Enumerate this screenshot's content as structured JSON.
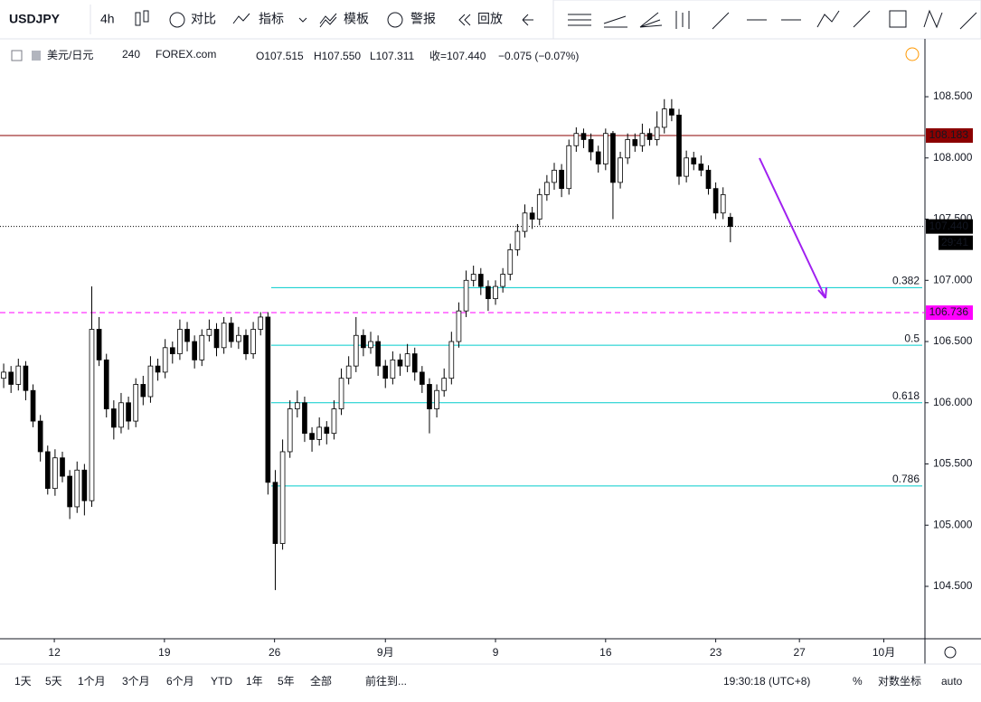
{
  "toolbar": {
    "symbol": "USDJPY",
    "interval": "4h",
    "buttons": [
      "对比",
      "指标",
      "模板",
      "警报",
      "回放"
    ]
  },
  "legend": {
    "name": "美元/日元",
    "resolution": "240",
    "source": "FOREX.com",
    "open": "O107.515",
    "high": "H107.550",
    "low": "L107.311",
    "close": "收=107.440",
    "change": "−0.075 (−0.07%)"
  },
  "chart_data": {
    "type": "candlestick",
    "ylim": [
      104.072,
      108.958
    ],
    "xlim": [
      -0.5,
      125.5
    ],
    "yticks": [
      {
        "value": 104.5,
        "label": "104.500"
      },
      {
        "value": 105,
        "label": "105.000"
      },
      {
        "value": 105.5,
        "label": "105.500"
      },
      {
        "value": 106,
        "label": "106.000"
      },
      {
        "value": 106.5,
        "label": "106.500"
      },
      {
        "value": 107,
        "label": "107.000"
      },
      {
        "value": 107.5,
        "label": "107.500"
      },
      {
        "value": 108,
        "label": "108.000"
      },
      {
        "value": 108.5,
        "label": "108.500"
      }
    ],
    "xticks": [
      {
        "value": 6.9,
        "label": "12"
      },
      {
        "value": 21.9,
        "label": "19"
      },
      {
        "value": 36.9,
        "label": "26"
      },
      {
        "value": 52,
        "label": "9月"
      },
      {
        "value": 67,
        "label": "9"
      },
      {
        "value": 82,
        "label": "16"
      },
      {
        "value": 97,
        "label": "23"
      },
      {
        "value": 108.4,
        "label": "27"
      },
      {
        "value": 119.9,
        "label": "10月"
      }
    ],
    "up_color": "#ffffff",
    "down_color": "#000000",
    "ohlc": [
      [
        106.2,
        106.32,
        106.12,
        106.25
      ],
      [
        106.25,
        106.3,
        106.08,
        106.15
      ],
      [
        106.15,
        106.36,
        106.1,
        106.3
      ],
      [
        106.3,
        106.34,
        106.02,
        106.1
      ],
      [
        106.1,
        106.15,
        105.8,
        105.85
      ],
      [
        105.85,
        105.9,
        105.52,
        105.6
      ],
      [
        105.6,
        105.65,
        105.25,
        105.3
      ],
      [
        105.3,
        105.62,
        105.24,
        105.55
      ],
      [
        105.55,
        105.6,
        105.35,
        105.4
      ],
      [
        105.4,
        105.45,
        105.05,
        105.15
      ],
      [
        105.15,
        105.52,
        105.1,
        105.45
      ],
      [
        105.45,
        105.5,
        105.08,
        105.2
      ],
      [
        105.2,
        106.95,
        105.15,
        106.6
      ],
      [
        106.6,
        106.7,
        106.3,
        106.35
      ],
      [
        106.35,
        106.4,
        105.88,
        105.95
      ],
      [
        105.95,
        106.02,
        105.7,
        105.8
      ],
      [
        105.8,
        106.08,
        105.75,
        106.0
      ],
      [
        106.0,
        106.05,
        105.78,
        105.85
      ],
      [
        105.85,
        106.2,
        105.8,
        106.15
      ],
      [
        106.15,
        106.22,
        105.98,
        106.05
      ],
      [
        106.05,
        106.38,
        106.0,
        106.3
      ],
      [
        106.3,
        106.36,
        106.18,
        106.25
      ],
      [
        106.25,
        106.52,
        106.2,
        106.45
      ],
      [
        106.45,
        106.5,
        106.32,
        106.4
      ],
      [
        106.4,
        106.68,
        106.35,
        106.6
      ],
      [
        106.6,
        106.66,
        106.42,
        106.5
      ],
      [
        106.5,
        106.55,
        106.28,
        106.35
      ],
      [
        106.35,
        106.6,
        106.3,
        106.55
      ],
      [
        106.55,
        106.68,
        106.5,
        106.6
      ],
      [
        106.6,
        106.65,
        106.38,
        106.45
      ],
      [
        106.45,
        106.7,
        106.4,
        106.65
      ],
      [
        106.65,
        106.7,
        106.45,
        106.5
      ],
      [
        106.5,
        106.62,
        106.44,
        106.55
      ],
      [
        106.55,
        106.6,
        106.35,
        106.4
      ],
      [
        106.4,
        106.66,
        106.36,
        106.6
      ],
      [
        106.6,
        106.74,
        106.55,
        106.7
      ],
      [
        106.7,
        106.74,
        105.25,
        105.35
      ],
      [
        105.35,
        105.45,
        104.47,
        104.85
      ],
      [
        104.85,
        105.7,
        104.8,
        105.6
      ],
      [
        105.6,
        106.02,
        105.55,
        105.95
      ],
      [
        105.95,
        106.1,
        105.88,
        106.0
      ],
      [
        106.0,
        106.05,
        105.68,
        105.75
      ],
      [
        105.75,
        105.8,
        105.6,
        105.7
      ],
      [
        105.7,
        105.88,
        105.65,
        105.8
      ],
      [
        105.8,
        105.85,
        105.66,
        105.75
      ],
      [
        105.75,
        106.02,
        105.7,
        105.95
      ],
      [
        105.95,
        106.28,
        105.9,
        106.2
      ],
      [
        106.2,
        106.38,
        106.15,
        106.3
      ],
      [
        106.3,
        106.7,
        106.25,
        106.55
      ],
      [
        106.55,
        106.6,
        106.38,
        106.45
      ],
      [
        106.45,
        106.58,
        106.4,
        106.5
      ],
      [
        106.5,
        106.55,
        106.22,
        106.3
      ],
      [
        106.3,
        106.35,
        106.12,
        106.2
      ],
      [
        106.2,
        106.42,
        106.15,
        106.35
      ],
      [
        106.35,
        106.4,
        106.22,
        106.3
      ],
      [
        106.3,
        106.48,
        106.25,
        106.4
      ],
      [
        106.4,
        106.45,
        106.18,
        106.25
      ],
      [
        106.25,
        106.3,
        106.08,
        106.15
      ],
      [
        106.15,
        106.2,
        105.75,
        105.95
      ],
      [
        105.95,
        106.15,
        105.88,
        106.1
      ],
      [
        106.1,
        106.28,
        106.05,
        106.2
      ],
      [
        106.2,
        106.58,
        106.15,
        106.5
      ],
      [
        106.5,
        106.82,
        106.45,
        106.75
      ],
      [
        106.75,
        107.08,
        106.7,
        107.0
      ],
      [
        107.0,
        107.12,
        106.95,
        107.05
      ],
      [
        107.05,
        107.1,
        106.88,
        106.95
      ],
      [
        106.95,
        107.0,
        106.75,
        106.85
      ],
      [
        106.85,
        107.0,
        106.8,
        106.95
      ],
      [
        106.95,
        107.1,
        106.9,
        107.05
      ],
      [
        107.05,
        107.3,
        107.0,
        107.25
      ],
      [
        107.25,
        107.46,
        107.2,
        107.4
      ],
      [
        107.4,
        107.62,
        107.35,
        107.55
      ],
      [
        107.55,
        107.6,
        107.42,
        107.5
      ],
      [
        107.5,
        107.75,
        107.45,
        107.7
      ],
      [
        107.7,
        107.86,
        107.65,
        107.8
      ],
      [
        107.8,
        107.96,
        107.74,
        107.9
      ],
      [
        107.9,
        107.95,
        107.68,
        107.75
      ],
      [
        107.75,
        108.15,
        107.7,
        108.1
      ],
      [
        108.1,
        108.25,
        108.05,
        108.2
      ],
      [
        108.2,
        108.24,
        108.08,
        108.15
      ],
      [
        108.15,
        108.2,
        107.98,
        108.05
      ],
      [
        108.05,
        108.1,
        107.88,
        107.95
      ],
      [
        107.95,
        108.24,
        107.9,
        108.2
      ],
      [
        108.2,
        108.22,
        107.5,
        107.8
      ],
      [
        107.8,
        108.05,
        107.75,
        108.0
      ],
      [
        108.0,
        108.2,
        107.95,
        108.15
      ],
      [
        108.15,
        108.2,
        108.05,
        108.1
      ],
      [
        108.1,
        108.28,
        108.05,
        108.2
      ],
      [
        108.2,
        108.24,
        108.1,
        108.15
      ],
      [
        108.15,
        108.38,
        108.1,
        108.25
      ],
      [
        108.25,
        108.48,
        108.2,
        108.4
      ],
      [
        108.4,
        108.48,
        108.3,
        108.35
      ],
      [
        108.35,
        108.4,
        107.78,
        107.85
      ],
      [
        107.85,
        108.06,
        107.8,
        108.0
      ],
      [
        108.0,
        108.05,
        107.9,
        107.95
      ],
      [
        107.95,
        108.02,
        107.85,
        107.9
      ],
      [
        107.9,
        107.94,
        107.7,
        107.75
      ],
      [
        107.75,
        107.8,
        107.5,
        107.55
      ],
      [
        107.55,
        107.76,
        107.5,
        107.7
      ],
      [
        107.515,
        107.55,
        107.311,
        107.44
      ]
    ],
    "hlines": [
      {
        "value": 108.183,
        "label": "108.183",
        "color": "#8b0000",
        "style": "solid"
      },
      {
        "value": 107.44,
        "label": "107.440",
        "color": "#000000",
        "style": "dotted"
      },
      {
        "value": 106.736,
        "label": "106.736",
        "color": "#ff00ff",
        "style": "dashed"
      }
    ],
    "countdown": "29:41",
    "fib_levels": [
      {
        "level": 0.382,
        "value": 106.94
      },
      {
        "level": 0.5,
        "value": 106.47
      },
      {
        "level": 0.618,
        "value": 106.0
      },
      {
        "level": 0.786,
        "value": 105.32
      }
    ],
    "fib_color": "#00cccc"
  },
  "bottom_bar": {
    "ranges": [
      "1天",
      "5天",
      "1个月",
      "3个月",
      "6个月",
      "YTD",
      "1年",
      "5年",
      "全部"
    ],
    "goto": "前往到...",
    "time": "19:30:18 (UTC+8)",
    "percent": "%",
    "log": "对数坐标",
    "auto": "auto"
  }
}
